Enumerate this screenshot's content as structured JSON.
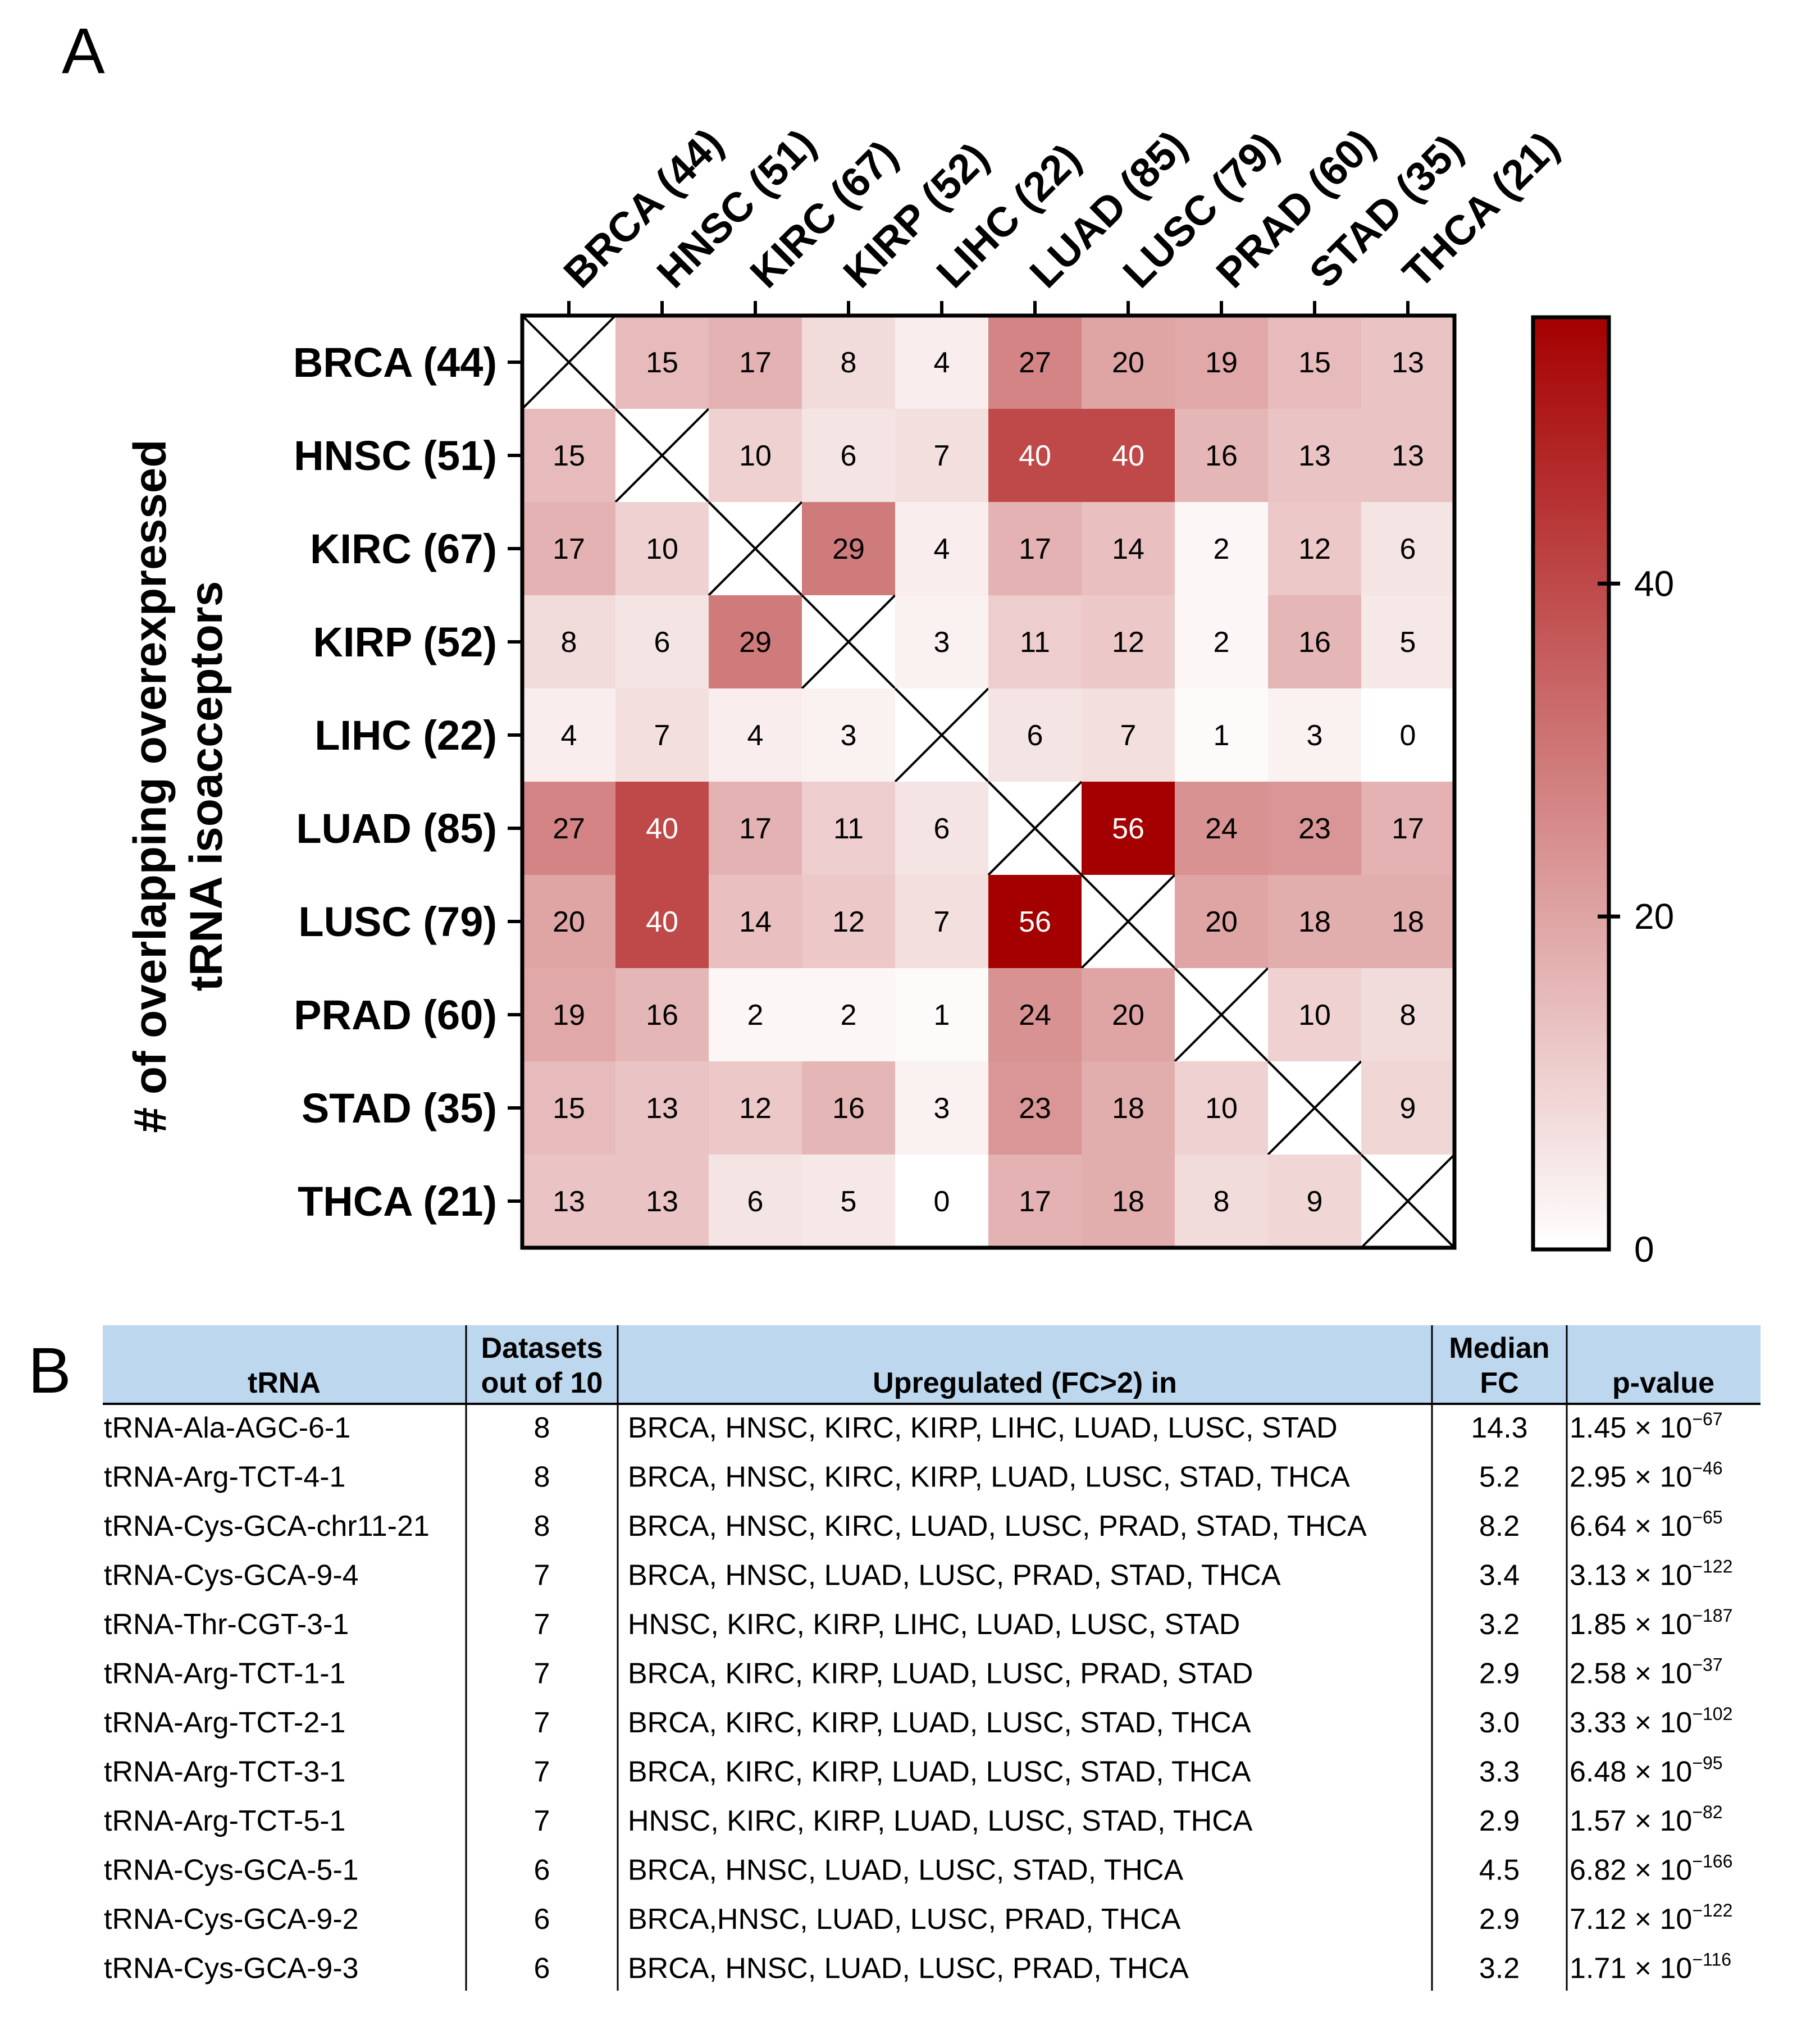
{
  "panel_a_label": "A",
  "panel_b_label": "B",
  "chart_data": {
    "type": "heatmap",
    "ylabel_line1": "# of overlapping overexpressed",
    "ylabel_line2": "tRNA isoacceptors",
    "categories": [
      "BRCA (44)",
      "HNSC (51)",
      "KIRC (67)",
      "KIRP (52)",
      "LIHC (22)",
      "LUAD (85)",
      "LUSC (79)",
      "PRAD (60)",
      "STAD (35)",
      "THCA (21)"
    ],
    "matrix": [
      [
        null,
        15,
        17,
        8,
        4,
        27,
        20,
        19,
        15,
        13
      ],
      [
        15,
        null,
        10,
        6,
        7,
        40,
        40,
        16,
        13,
        13
      ],
      [
        17,
        10,
        null,
        29,
        4,
        17,
        14,
        2,
        12,
        6
      ],
      [
        8,
        6,
        29,
        null,
        3,
        11,
        12,
        2,
        16,
        5
      ],
      [
        4,
        7,
        4,
        3,
        null,
        6,
        7,
        1,
        3,
        0
      ],
      [
        27,
        40,
        17,
        11,
        6,
        null,
        56,
        24,
        23,
        17
      ],
      [
        20,
        40,
        14,
        12,
        7,
        56,
        null,
        20,
        18,
        18
      ],
      [
        19,
        16,
        2,
        2,
        1,
        24,
        20,
        null,
        10,
        8
      ],
      [
        15,
        13,
        12,
        16,
        3,
        23,
        18,
        10,
        null,
        9
      ],
      [
        13,
        13,
        6,
        5,
        0,
        17,
        18,
        8,
        9,
        null
      ]
    ],
    "colorbar": {
      "range": [
        0,
        56
      ],
      "ticks": [
        0,
        20,
        40
      ],
      "low_color": "#ffffff",
      "high_color": "#a50000",
      "text_light_color": "#ffffff",
      "text_dark_color": "#000000"
    }
  },
  "table": {
    "header_bg": "#bdd7ee",
    "headers": {
      "trna": "tRNA",
      "datasets_line1": "Datasets",
      "datasets_line2": "out of 10",
      "upregulated": "Upregulated (FC>2) in",
      "median_line1": "Median",
      "median_line2": "FC",
      "pvalue": "p-value"
    },
    "rows": [
      {
        "trna": "tRNA-Ala-AGC-6-1",
        "datasets": "8",
        "upregulated": "BRCA, HNSC, KIRC, KIRP, LIHC, LUAD, LUSC, STAD",
        "median_fc": "14.3",
        "p_mant": "1.45 × 10",
        "p_exp": "−67"
      },
      {
        "trna": "tRNA-Arg-TCT-4-1",
        "datasets": "8",
        "upregulated": "BRCA, HNSC, KIRC, KIRP, LUAD, LUSC, STAD, THCA",
        "median_fc": "5.2",
        "p_mant": "2.95 × 10",
        "p_exp": "−46"
      },
      {
        "trna": "tRNA-Cys-GCA-chr11-21",
        "datasets": "8",
        "upregulated": "BRCA, HNSC, KIRC, LUAD, LUSC, PRAD, STAD, THCA",
        "median_fc": "8.2",
        "p_mant": "6.64 × 10",
        "p_exp": "−65"
      },
      {
        "trna": "tRNA-Cys-GCA-9-4",
        "datasets": "7",
        "upregulated": "BRCA, HNSC, LUAD, LUSC, PRAD, STAD, THCA",
        "median_fc": "3.4",
        "p_mant": "3.13 × 10",
        "p_exp": "−122"
      },
      {
        "trna": "tRNA-Thr-CGT-3-1",
        "datasets": "7",
        "upregulated": "HNSC, KIRC, KIRP, LIHC, LUAD, LUSC, STAD",
        "median_fc": "3.2",
        "p_mant": "1.85 × 10",
        "p_exp": "−187"
      },
      {
        "trna": "tRNA-Arg-TCT-1-1",
        "datasets": "7",
        "upregulated": "BRCA, KIRC, KIRP, LUAD, LUSC, PRAD, STAD",
        "median_fc": "2.9",
        "p_mant": "2.58 × 10",
        "p_exp": "−37"
      },
      {
        "trna": "tRNA-Arg-TCT-2-1",
        "datasets": "7",
        "upregulated": "BRCA, KIRC, KIRP, LUAD, LUSC, STAD, THCA",
        "median_fc": "3.0",
        "p_mant": "3.33 × 10",
        "p_exp": "−102"
      },
      {
        "trna": "tRNA-Arg-TCT-3-1",
        "datasets": "7",
        "upregulated": "BRCA, KIRC, KIRP, LUAD, LUSC, STAD, THCA",
        "median_fc": "3.3",
        "p_mant": "6.48 × 10",
        "p_exp": "−95"
      },
      {
        "trna": "tRNA-Arg-TCT-5-1",
        "datasets": "7",
        "upregulated": "HNSC, KIRC, KIRP, LUAD, LUSC, STAD, THCA",
        "median_fc": "2.9",
        "p_mant": "1.57 × 10",
        "p_exp": "−82"
      },
      {
        "trna": "tRNA-Cys-GCA-5-1",
        "datasets": "6",
        "upregulated": "BRCA, HNSC, LUAD, LUSC, STAD, THCA",
        "median_fc": "4.5",
        "p_mant": "6.82 × 10",
        "p_exp": "−166"
      },
      {
        "trna": "tRNA-Cys-GCA-9-2",
        "datasets": "6",
        "upregulated": "BRCA,HNSC, LUAD, LUSC, PRAD, THCA",
        "median_fc": "2.9",
        "p_mant": "7.12 × 10",
        "p_exp": "−122"
      },
      {
        "trna": "tRNA-Cys-GCA-9-3",
        "datasets": "6",
        "upregulated": "BRCA, HNSC, LUAD, LUSC, PRAD, THCA",
        "median_fc": "3.2",
        "p_mant": "1.71 × 10",
        "p_exp": "−116"
      }
    ]
  }
}
